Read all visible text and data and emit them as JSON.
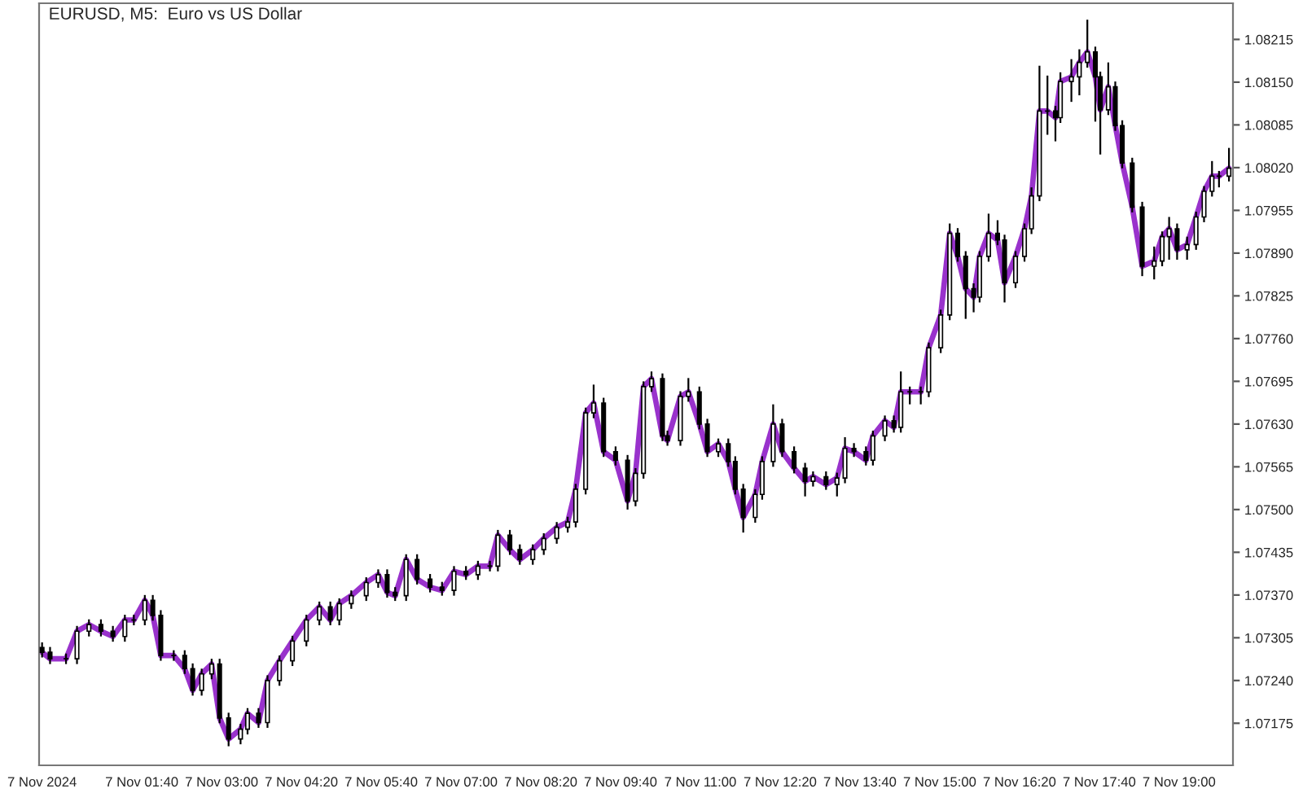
{
  "chart_data": {
    "type": "candlestick",
    "title": "EURUSD, M5:  Euro vs US Dollar",
    "x": [
      "2024-11-07T00:00",
      "2024-11-07T00:08",
      "2024-11-07T00:24",
      "2024-11-07T00:35",
      "2024-11-07T00:47",
      "2024-11-07T00:59",
      "2024-11-07T01:11",
      "2024-11-07T01:23",
      "2024-11-07T01:32",
      "2024-11-07T01:43",
      "2024-11-07T01:51",
      "2024-11-07T01:59",
      "2024-11-07T02:12",
      "2024-11-07T02:23",
      "2024-11-07T02:31",
      "2024-11-07T02:40",
      "2024-11-07T02:50",
      "2024-11-07T02:58",
      "2024-11-07T03:07",
      "2024-11-07T03:19",
      "2024-11-07T03:26",
      "2024-11-07T03:37",
      "2024-11-07T03:46",
      "2024-11-07T03:58",
      "2024-11-07T04:11",
      "2024-11-07T04:25",
      "2024-11-07T04:38",
      "2024-11-07T04:49",
      "2024-11-07T04:58",
      "2024-11-07T05:10",
      "2024-11-07T05:25",
      "2024-11-07T05:37",
      "2024-11-07T05:46",
      "2024-11-07T05:54",
      "2024-11-07T06:05",
      "2024-11-07T06:16",
      "2024-11-07T06:29",
      "2024-11-07T06:41",
      "2024-11-07T06:53",
      "2024-11-07T07:05",
      "2024-11-07T07:17",
      "2024-11-07T07:29",
      "2024-11-07T07:37",
      "2024-11-07T07:49",
      "2024-11-07T07:59",
      "2024-11-07T08:12",
      "2024-11-07T08:23",
      "2024-11-07T08:36",
      "2024-11-07T08:47",
      "2024-11-07T08:55",
      "2024-11-07T09:05",
      "2024-11-07T09:13",
      "2024-11-07T09:23",
      "2024-11-07T09:35",
      "2024-11-07T09:47",
      "2024-11-07T09:55",
      "2024-11-07T10:03",
      "2024-11-07T10:11",
      "2024-11-07T10:22",
      "2024-11-07T10:27",
      "2024-11-07T10:40",
      "2024-11-07T10:48",
      "2024-11-07T10:59",
      "2024-11-07T11:07",
      "2024-11-07T11:18",
      "2024-11-07T11:28",
      "2024-11-07T11:35",
      "2024-11-07T11:43",
      "2024-11-07T11:55",
      "2024-11-07T12:02",
      "2024-11-07T12:13",
      "2024-11-07T12:22",
      "2024-11-07T12:34",
      "2024-11-07T12:45",
      "2024-11-07T12:53",
      "2024-11-07T13:06",
      "2024-11-07T13:17",
      "2024-11-07T13:25",
      "2024-11-07T13:34",
      "2024-11-07T13:46",
      "2024-11-07T13:53",
      "2024-11-07T14:05",
      "2024-11-07T14:14",
      "2024-11-07T14:21",
      "2024-11-07T14:30",
      "2024-11-07T14:41",
      "2024-11-07T14:49",
      "2024-11-07T15:01",
      "2024-11-07T15:10",
      "2024-11-07T15:18",
      "2024-11-07T15:26",
      "2024-11-07T15:34",
      "2024-11-07T15:40",
      "2024-11-07T15:49",
      "2024-11-07T15:58",
      "2024-11-07T16:05",
      "2024-11-07T16:16",
      "2024-11-07T16:25",
      "2024-11-07T16:32",
      "2024-11-07T16:40",
      "2024-11-07T16:48",
      "2024-11-07T16:56",
      "2024-11-07T17:01",
      "2024-11-07T17:12",
      "2024-11-07T17:20",
      "2024-11-07T17:28",
      "2024-11-07T17:36",
      "2024-11-07T17:41",
      "2024-11-07T17:49",
      "2024-11-07T17:56",
      "2024-11-07T18:03",
      "2024-11-07T18:13",
      "2024-11-07T18:23",
      "2024-11-07T18:35",
      "2024-11-07T18:43",
      "2024-11-07T18:50",
      "2024-11-07T18:58",
      "2024-11-07T19:08",
      "2024-11-07T19:17",
      "2024-11-07T19:25",
      "2024-11-07T19:33",
      "2024-11-07T19:40",
      "2024-11-07T19:50"
    ],
    "ohlc": [
      [
        1.0729,
        1.07298,
        1.07275,
        1.07283
      ],
      [
        1.07283,
        1.07291,
        1.07265,
        1.07273
      ],
      [
        1.07273,
        1.07281,
        1.07265,
        1.07273
      ],
      [
        1.07273,
        1.07323,
        1.07265,
        1.07315
      ],
      [
        1.07315,
        1.07333,
        1.07307,
        1.07325
      ],
      [
        1.07325,
        1.07333,
        1.07307,
        1.07315
      ],
      [
        1.07315,
        1.07323,
        1.07299,
        1.07307
      ],
      [
        1.07307,
        1.0734,
        1.07299,
        1.07332
      ],
      [
        1.07332,
        1.0734,
        1.07324,
        1.07332
      ],
      [
        1.07332,
        1.0737,
        1.07324,
        1.07362
      ],
      [
        1.07362,
        1.0737,
        1.07331,
        1.07339
      ],
      [
        1.07339,
        1.07347,
        1.0727,
        1.07278
      ],
      [
        1.07278,
        1.07286,
        1.0727,
        1.07278
      ],
      [
        1.07278,
        1.07286,
        1.0725,
        1.07258
      ],
      [
        1.07258,
        1.07266,
        1.07217,
        1.07225
      ],
      [
        1.07225,
        1.07258,
        1.07217,
        1.0725
      ],
      [
        1.0725,
        1.07273,
        1.07242,
        1.07265
      ],
      [
        1.07265,
        1.07273,
        1.07175,
        1.07183
      ],
      [
        1.07183,
        1.07191,
        1.0714,
        1.07151
      ],
      [
        1.07151,
        1.07174,
        1.07143,
        1.07166
      ],
      [
        1.07166,
        1.07198,
        1.07158,
        1.0719
      ],
      [
        1.0719,
        1.07198,
        1.07168,
        1.07176
      ],
      [
        1.07176,
        1.07248,
        1.07168,
        1.0724
      ],
      [
        1.0724,
        1.07278,
        1.07232,
        1.0727
      ],
      [
        1.0727,
        1.07308,
        1.07262,
        1.073
      ],
      [
        1.073,
        1.0734,
        1.07292,
        1.07332
      ],
      [
        1.07332,
        1.0736,
        1.07324,
        1.07352
      ],
      [
        1.07352,
        1.0736,
        1.07324,
        1.07332
      ],
      [
        1.07332,
        1.07365,
        1.07324,
        1.07357
      ],
      [
        1.07357,
        1.07377,
        1.07349,
        1.07369
      ],
      [
        1.07369,
        1.07397,
        1.07361,
        1.07389
      ],
      [
        1.07389,
        1.07409,
        1.07381,
        1.07401
      ],
      [
        1.07401,
        1.07409,
        1.07366,
        1.07374
      ],
      [
        1.07374,
        1.07382,
        1.07361,
        1.07369
      ],
      [
        1.07369,
        1.07432,
        1.07361,
        1.07424
      ],
      [
        1.07424,
        1.07432,
        1.07386,
        1.07394
      ],
      [
        1.07394,
        1.07402,
        1.07374,
        1.07382
      ],
      [
        1.07382,
        1.0739,
        1.07369,
        1.07377
      ],
      [
        1.07377,
        1.07414,
        1.07369,
        1.07406
      ],
      [
        1.07406,
        1.07414,
        1.07393,
        1.07401
      ],
      [
        1.07401,
        1.07422,
        1.07393,
        1.07414
      ],
      [
        1.07414,
        1.07422,
        1.07406,
        1.07414
      ],
      [
        1.07414,
        1.07469,
        1.07406,
        1.07461
      ],
      [
        1.07461,
        1.07469,
        1.07431,
        1.07439
      ],
      [
        1.07439,
        1.07447,
        1.07416,
        1.07424
      ],
      [
        1.07424,
        1.07447,
        1.07416,
        1.07439
      ],
      [
        1.07439,
        1.07464,
        1.07431,
        1.07456
      ],
      [
        1.07456,
        1.07481,
        1.07448,
        1.07473
      ],
      [
        1.07473,
        1.07489,
        1.07465,
        1.07481
      ],
      [
        1.07481,
        1.07539,
        1.07473,
        1.07531
      ],
      [
        1.07531,
        1.07655,
        1.07523,
        1.07647
      ],
      [
        1.07647,
        1.0769,
        1.07639,
        1.07662
      ],
      [
        1.07662,
        1.0767,
        1.0758,
        1.07588
      ],
      [
        1.07588,
        1.07596,
        1.07567,
        1.07575
      ],
      [
        1.07575,
        1.07583,
        1.075,
        1.07513
      ],
      [
        1.07513,
        1.07563,
        1.07505,
        1.07555
      ],
      [
        1.07555,
        1.07695,
        1.07547,
        1.07687
      ],
      [
        1.07687,
        1.0771,
        1.07679,
        1.07699
      ],
      [
        1.07699,
        1.07707,
        1.07604,
        1.07612
      ],
      [
        1.07612,
        1.0762,
        1.07597,
        1.07605
      ],
      [
        1.07605,
        1.0768,
        1.07597,
        1.07672
      ],
      [
        1.07672,
        1.077,
        1.07664,
        1.07679
      ],
      [
        1.07679,
        1.07687,
        1.07622,
        1.0763
      ],
      [
        1.0763,
        1.07638,
        1.0758,
        1.07588
      ],
      [
        1.07588,
        1.07608,
        1.0758,
        1.076
      ],
      [
        1.076,
        1.07608,
        1.07565,
        1.07573
      ],
      [
        1.07573,
        1.07581,
        1.07523,
        1.07531
      ],
      [
        1.07531,
        1.07539,
        1.07465,
        1.07488
      ],
      [
        1.07488,
        1.07531,
        1.0748,
        1.07523
      ],
      [
        1.07523,
        1.07581,
        1.07515,
        1.07573
      ],
      [
        1.07573,
        1.0766,
        1.07565,
        1.0763
      ],
      [
        1.0763,
        1.07638,
        1.0758,
        1.07588
      ],
      [
        1.07588,
        1.07596,
        1.07555,
        1.07563
      ],
      [
        1.07563,
        1.07571,
        1.0752,
        1.07543
      ],
      [
        1.07543,
        1.07558,
        1.07535,
        1.0755
      ],
      [
        1.0755,
        1.07558,
        1.0753,
        1.07538
      ],
      [
        1.07538,
        1.07556,
        1.0752,
        1.07548
      ],
      [
        1.07548,
        1.0761,
        1.0754,
        1.07593
      ],
      [
        1.07593,
        1.07601,
        1.0758,
        1.07588
      ],
      [
        1.07588,
        1.07596,
        1.07567,
        1.07575
      ],
      [
        1.07575,
        1.0762,
        1.07567,
        1.07612
      ],
      [
        1.07612,
        1.07643,
        1.07604,
        1.07635
      ],
      [
        1.07635,
        1.07643,
        1.07617,
        1.07625
      ],
      [
        1.07625,
        1.0771,
        1.07617,
        1.07679
      ],
      [
        1.07679,
        1.07687,
        1.0766,
        1.07679
      ],
      [
        1.07679,
        1.07687,
        1.0766,
        1.07679
      ],
      [
        1.07679,
        1.07754,
        1.07671,
        1.07746
      ],
      [
        1.07746,
        1.07804,
        1.07738,
        1.07796
      ],
      [
        1.07796,
        1.07935,
        1.07788,
        1.0792
      ],
      [
        1.0792,
        1.07928,
        1.07877,
        1.07885
      ],
      [
        1.07885,
        1.07893,
        1.0779,
        1.07836
      ],
      [
        1.07836,
        1.07844,
        1.078,
        1.07823
      ],
      [
        1.07823,
        1.07893,
        1.07815,
        1.07885
      ],
      [
        1.07885,
        1.0795,
        1.07877,
        1.0792
      ],
      [
        1.0792,
        1.0794,
        1.07902,
        1.0791
      ],
      [
        1.0791,
        1.07918,
        1.07815,
        1.07845
      ],
      [
        1.07845,
        1.07893,
        1.07837,
        1.07885
      ],
      [
        1.07885,
        1.07935,
        1.07877,
        1.07927
      ],
      [
        1.07927,
        1.0799,
        1.07919,
        1.07977
      ],
      [
        1.07977,
        1.08175,
        1.07969,
        1.08106
      ],
      [
        1.08106,
        1.0816,
        1.0807,
        1.08106
      ],
      [
        1.08106,
        1.08114,
        1.0806,
        1.08096
      ],
      [
        1.08096,
        1.08165,
        1.08088,
        1.08151
      ],
      [
        1.08151,
        1.08185,
        1.0812,
        1.08158
      ],
      [
        1.08158,
        1.082,
        1.0813,
        1.0818
      ],
      [
        1.0818,
        1.08245,
        1.08172,
        1.08196
      ],
      [
        1.08196,
        1.08204,
        1.0809,
        1.08158
      ],
      [
        1.08158,
        1.08166,
        1.0804,
        1.08108
      ],
      [
        1.08108,
        1.0818,
        1.081,
        1.08143
      ],
      [
        1.08143,
        1.08151,
        1.08076,
        1.08084
      ],
      [
        1.08084,
        1.08092,
        1.08019,
        1.08027
      ],
      [
        1.08027,
        1.08035,
        1.07952,
        1.0796
      ],
      [
        1.0796,
        1.07968,
        1.07855,
        1.0787
      ],
      [
        1.0787,
        1.079,
        1.0785,
        1.07878
      ],
      [
        1.07878,
        1.07923,
        1.0787,
        1.07915
      ],
      [
        1.07915,
        1.07945,
        1.0788,
        1.07927
      ],
      [
        1.07927,
        1.07935,
        1.0788,
        1.07895
      ],
      [
        1.07895,
        1.07915,
        1.0788,
        1.07903
      ],
      [
        1.07903,
        1.07953,
        1.07895,
        1.07945
      ],
      [
        1.07945,
        1.07992,
        1.07937,
        1.07984
      ],
      [
        1.07984,
        1.0803,
        1.07976,
        1.08007
      ],
      [
        1.08007,
        1.08015,
        1.0799,
        1.08007
      ],
      [
        1.08007,
        1.0805,
        1.07999,
        1.08019
      ]
    ],
    "series": [
      {
        "type": "line",
        "color": "#9932cc",
        "values": [
          1.07283,
          1.07273,
          1.07273,
          1.07315,
          1.07325,
          1.07315,
          1.07307,
          1.07332,
          1.07332,
          1.07362,
          1.07339,
          1.07278,
          1.07278,
          1.07258,
          1.07225,
          1.0725,
          1.07265,
          1.07183,
          1.07151,
          1.07166,
          1.0719,
          1.07176,
          1.0724,
          1.0727,
          1.073,
          1.07332,
          1.07352,
          1.07332,
          1.07357,
          1.07369,
          1.07389,
          1.07401,
          1.07374,
          1.07369,
          1.07424,
          1.07394,
          1.07382,
          1.07377,
          1.07406,
          1.07401,
          1.07414,
          1.07414,
          1.07461,
          1.07439,
          1.07424,
          1.07439,
          1.07456,
          1.07473,
          1.07481,
          1.07531,
          1.07647,
          1.07662,
          1.07588,
          1.07575,
          1.07513,
          1.07555,
          1.07687,
          1.07699,
          1.07612,
          1.07605,
          1.07672,
          1.07679,
          1.0763,
          1.07588,
          1.076,
          1.07573,
          1.07531,
          1.07488,
          1.07523,
          1.07573,
          1.0763,
          1.07588,
          1.07563,
          1.07543,
          1.0755,
          1.07538,
          1.07548,
          1.07593,
          1.07588,
          1.07575,
          1.07612,
          1.07635,
          1.07625,
          1.07679,
          1.07679,
          1.07679,
          1.07746,
          1.07796,
          1.0792,
          1.07885,
          1.07836,
          1.07823,
          1.07885,
          1.0792,
          1.0791,
          1.07845,
          1.07885,
          1.07927,
          1.07977,
          1.08106,
          1.08106,
          1.08096,
          1.08151,
          1.08158,
          1.0818,
          1.08196,
          1.08158,
          1.08108,
          1.08143,
          1.08084,
          1.08027,
          1.0796,
          1.0787,
          1.07878,
          1.07915,
          1.07927,
          1.07895,
          1.07903,
          1.07945,
          1.07984,
          1.08007,
          1.08007,
          1.08019
        ]
      }
    ],
    "xlim": [
      "2024-11-06T23:57",
      "2024-11-07T19:54"
    ],
    "ylim": [
      1.07111,
      1.0827
    ],
    "xticks": [
      {
        "value": "2024-11-07T00:00",
        "label": "7 Nov 2024"
      },
      {
        "value": "2024-11-07T01:40",
        "label": "7 Nov 01:40"
      },
      {
        "value": "2024-11-07T03:00",
        "label": "7 Nov 03:00"
      },
      {
        "value": "2024-11-07T04:20",
        "label": "7 Nov 04:20"
      },
      {
        "value": "2024-11-07T05:40",
        "label": "7 Nov 05:40"
      },
      {
        "value": "2024-11-07T07:00",
        "label": "7 Nov 07:00"
      },
      {
        "value": "2024-11-07T08:20",
        "label": "7 Nov 08:20"
      },
      {
        "value": "2024-11-07T09:40",
        "label": "7 Nov 09:40"
      },
      {
        "value": "2024-11-07T11:00",
        "label": "7 Nov 11:00"
      },
      {
        "value": "2024-11-07T12:20",
        "label": "7 Nov 12:20"
      },
      {
        "value": "2024-11-07T13:40",
        "label": "7 Nov 13:40"
      },
      {
        "value": "2024-11-07T15:00",
        "label": "7 Nov 15:00"
      },
      {
        "value": "2024-11-07T16:20",
        "label": "7 Nov 16:20"
      },
      {
        "value": "2024-11-07T17:40",
        "label": "7 Nov 17:40"
      },
      {
        "value": "2024-11-07T19:00",
        "label": "7 Nov 19:00"
      }
    ],
    "yticks": [
      1.07175,
      {
        "value": 1.0724,
        "label": "1.07240"
      },
      1.07305,
      {
        "value": 1.0737,
        "label": "1.07370"
      },
      1.07435,
      {
        "value": 1.075,
        "label": "1.07500"
      },
      1.07565,
      {
        "value": 1.0763,
        "label": "1.07630"
      },
      1.07695,
      {
        "value": 1.0776,
        "label": "1.07760"
      },
      1.07825,
      {
        "value": 1.0789,
        "label": "1.07890"
      },
      1.07955,
      {
        "value": 1.0802,
        "label": "1.08020"
      },
      1.08085,
      {
        "value": 1.0815,
        "label": "1.08150"
      },
      1.08215
    ],
    "grid": false,
    "legend": false
  }
}
